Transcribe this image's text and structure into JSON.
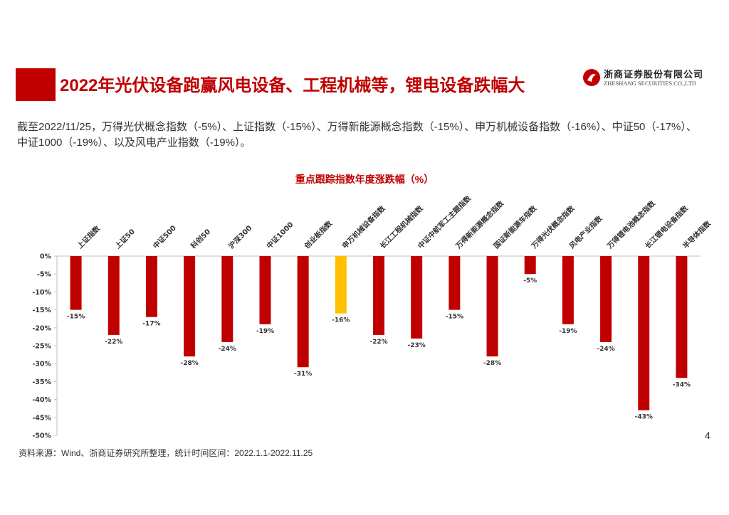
{
  "header": {
    "title": "2022年光伏设备跑赢风电设备、工程机械等，锂电设备跌幅大",
    "logo_cn": "浙商证券股份有限公司",
    "logo_en": "ZHESHANG SECURITIES CO.,LTD"
  },
  "summary": "截至2022/11/25，万得光伏概念指数（-5%）、上证指数（-15%）、万得新能源概念指数（-15%）、申万机械设备指数（-16%）、中证50（-17%）、中证1000（-19%）、以及风电产业指数（-19%）。",
  "chart_data": {
    "type": "bar",
    "title": "重点跟踪指数年度涨跌幅（%）",
    "xlabel": "",
    "ylabel": "",
    "ylim": [
      -50,
      0
    ],
    "yticks": [
      "0%",
      "-5%",
      "-10%",
      "-15%",
      "-20%",
      "-25%",
      "-30%",
      "-35%",
      "-40%",
      "-45%",
      "-50%"
    ],
    "categories": [
      "上证指数",
      "上证50",
      "中证500",
      "科创50",
      "沪深300",
      "中证1000",
      "创业板指数",
      "申万机械设备指数",
      "长江工程机械指数",
      "中证中航军工主题指数",
      "万得新能源概念指数",
      "国证新能源车指数",
      "万得光伏概念指数",
      "风电产业指数",
      "万得锂电池概念指数",
      "长江锂电设备指数",
      "半导体指数"
    ],
    "values": [
      -15,
      -22,
      -17,
      -28,
      -24,
      -19,
      -31,
      -16,
      -22,
      -23,
      -15,
      -28,
      -5,
      -19,
      -24,
      -43,
      -34
    ],
    "labels": [
      "-15%",
      "-22%",
      "-17%",
      "-28%",
      "-24%",
      "-19%",
      "-31%",
      "-16%",
      "-22%",
      "-23%",
      "-15%",
      "-28%",
      "-5%",
      "-19%",
      "-24%",
      "-43%",
      "-34%"
    ],
    "highlight_index": 7,
    "colors": {
      "bar": "#c00000",
      "highlight": "#ffc000",
      "axis": "#bfbfbf"
    }
  },
  "page_number": "4",
  "source": "资料来源：Wind、浙商证券研究所整理，统计时间区间：2022.1.1-2022.11.25"
}
